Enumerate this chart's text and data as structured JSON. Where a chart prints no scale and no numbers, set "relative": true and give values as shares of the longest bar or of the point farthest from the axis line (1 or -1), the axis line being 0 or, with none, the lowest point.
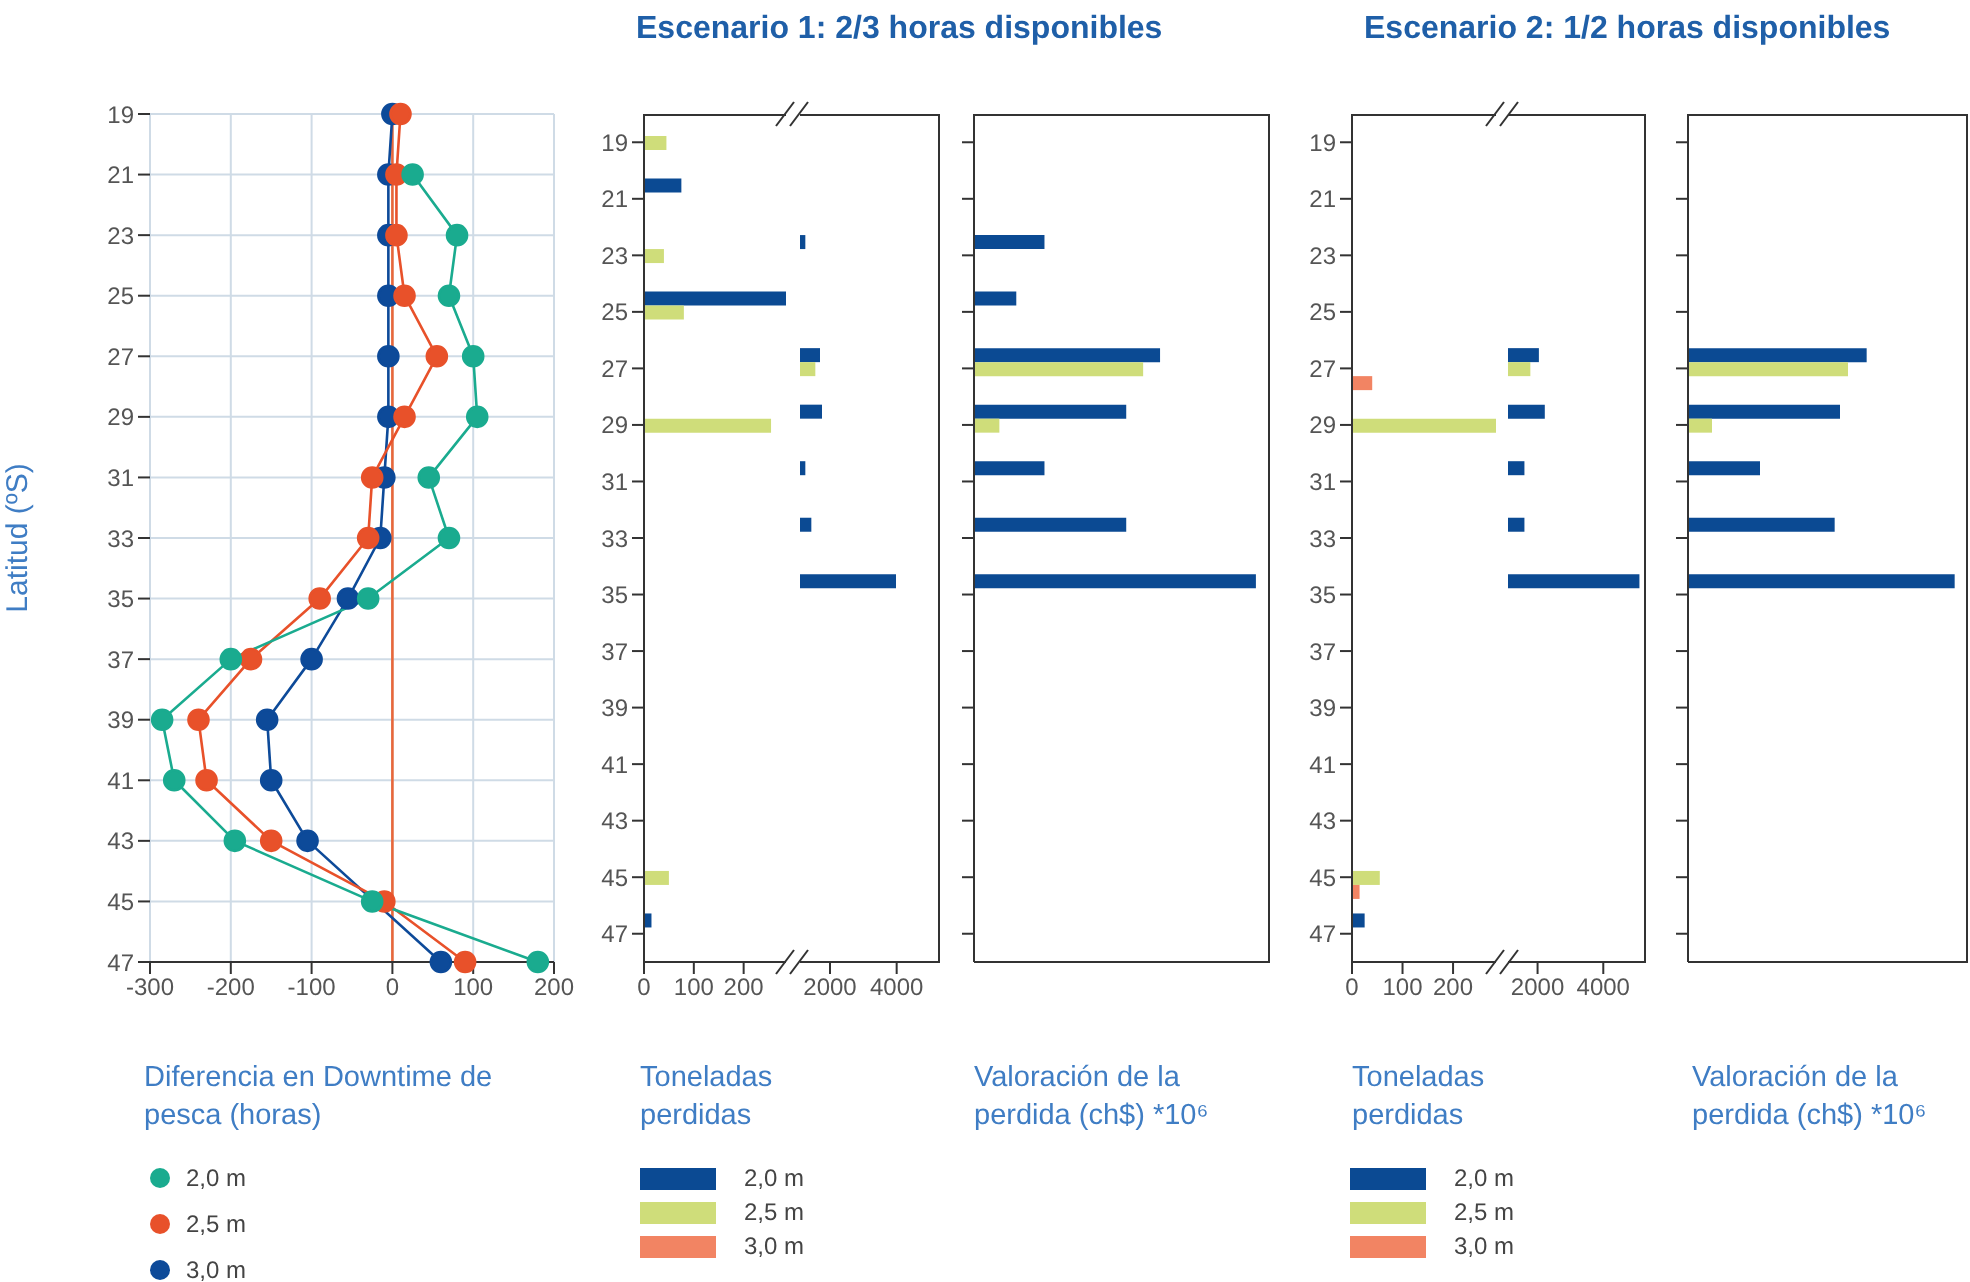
{
  "chart_data": [
    {
      "type": "line",
      "orientation": "horizontal",
      "xlabel": "Diferencia en Downtime de pesca (horas)",
      "ylabel": "Latitud (ºS)",
      "categories": [
        "19",
        "21",
        "23",
        "25",
        "27",
        "29",
        "31",
        "33",
        "35",
        "37",
        "39",
        "41",
        "43",
        "45",
        "47"
      ],
      "xlim": [
        -300,
        200
      ],
      "xticks": [
        -300,
        -200,
        -100,
        0,
        100,
        200
      ],
      "grid": true,
      "legend": "bottom",
      "marker": "circle",
      "ref_lines": [
        {
          "axis": "x",
          "value": 0,
          "color": "#e8673a"
        }
      ],
      "series": [
        {
          "name": "2,0 m",
          "color": "#1aab8f",
          "values": [
            null,
            25,
            80,
            70,
            100,
            105,
            45,
            70,
            -30,
            -200,
            -285,
            -270,
            -195,
            -25,
            180
          ]
        },
        {
          "name": "2,5 m",
          "color": "#e8512a",
          "values": [
            10,
            5,
            5,
            15,
            55,
            15,
            -25,
            -30,
            -90,
            -175,
            -240,
            -230,
            -150,
            -10,
            90
          ]
        },
        {
          "name": "3,0 m",
          "color": "#0d4a99",
          "values": [
            0,
            -5,
            -5,
            -5,
            -5,
            -5,
            -10,
            -15,
            -55,
            -100,
            -155,
            -150,
            -105,
            null,
            60
          ]
        }
      ]
    },
    {
      "type": "bar",
      "orientation": "horizontal",
      "title": "Escenario 1: 2/3 horas disponibles",
      "xlabel": "Toneladas perdidas",
      "categories": [
        "19",
        "21",
        "23",
        "25",
        "27",
        "29",
        "31",
        "33",
        "35",
        "37",
        "39",
        "41",
        "43",
        "45",
        "47"
      ],
      "xlim": [
        0,
        285
      ],
      "xticks": [
        0,
        100,
        200
      ],
      "legend": "bottom",
      "series": [
        {
          "name": "2,0 m",
          "color": "#0b4a93",
          "values": [
            null,
            75,
            null,
            285,
            null,
            null,
            null,
            null,
            null,
            null,
            null,
            null,
            null,
            null,
            15
          ]
        },
        {
          "name": "2,5 m",
          "color": "#cfdd7a",
          "values": [
            45,
            null,
            40,
            80,
            null,
            255,
            null,
            null,
            null,
            null,
            null,
            null,
            null,
            50,
            null
          ]
        },
        {
          "name": "3,0 m",
          "color": "#f28463",
          "values": [
            null,
            null,
            null,
            null,
            null,
            null,
            null,
            null,
            null,
            null,
            null,
            null,
            null,
            null,
            null
          ]
        }
      ]
    },
    {
      "type": "bar",
      "orientation": "horizontal",
      "tick_labels": "x",
      "categories": [
        "19",
        "21",
        "23",
        "25",
        "27",
        "29",
        "31",
        "33",
        "35",
        "37",
        "39",
        "41",
        "43",
        "45",
        "47"
      ],
      "xlim": [
        1100,
        5300
      ],
      "xticks": [
        2000,
        4000
      ],
      "series": [
        {
          "color": "#0b4a93",
          "values": [
            null,
            null,
            1260,
            null,
            1700,
            1760,
            1260,
            1440,
            3980,
            null,
            null,
            null,
            null,
            null,
            null
          ]
        },
        {
          "color": "#cfdd7a",
          "values": [
            null,
            null,
            null,
            null,
            1560,
            null,
            null,
            null,
            null,
            null,
            null,
            null,
            null,
            null,
            null
          ]
        },
        {
          "color": "#f28463",
          "values": [
            null,
            null,
            null,
            null,
            null,
            null,
            null,
            null,
            null,
            null,
            null,
            null,
            null,
            null,
            null
          ]
        }
      ]
    },
    {
      "type": "bar",
      "orientation": "horizontal",
      "relative": true,
      "tick_labels": false,
      "xlabel": "Valoración de la perdida (ch$) *10⁶",
      "categories": [
        "19",
        "21",
        "23",
        "25",
        "27",
        "29",
        "31",
        "33",
        "35",
        "37",
        "39",
        "41",
        "43",
        "45",
        "47"
      ],
      "series": [
        {
          "color": "#0b4a93",
          "values": [
            null,
            null,
            0.25,
            0.15,
            0.66,
            0.54,
            0.25,
            0.54,
            1,
            null,
            null,
            null,
            null,
            null,
            null
          ]
        },
        {
          "color": "#cfdd7a",
          "values": [
            null,
            null,
            null,
            null,
            0.6,
            0.09,
            null,
            null,
            null,
            null,
            null,
            null,
            null,
            null,
            null
          ]
        },
        {
          "color": "#f28463",
          "values": [
            null,
            null,
            null,
            null,
            null,
            null,
            null,
            null,
            null,
            null,
            null,
            null,
            null,
            null,
            null
          ]
        }
      ]
    },
    {
      "type": "bar",
      "orientation": "horizontal",
      "title": "Escenario 2: 1/2 horas disponibles",
      "xlabel": "Toneladas perdidas",
      "categories": [
        "19",
        "21",
        "23",
        "25",
        "27",
        "29",
        "31",
        "33",
        "35",
        "37",
        "39",
        "41",
        "43",
        "45",
        "47"
      ],
      "xlim": [
        0,
        285
      ],
      "xticks": [
        0,
        100,
        200
      ],
      "legend": "bottom",
      "series": [
        {
          "name": "2,0 m",
          "color": "#0b4a93",
          "values": [
            null,
            null,
            null,
            null,
            null,
            null,
            null,
            null,
            null,
            null,
            null,
            null,
            null,
            null,
            25
          ]
        },
        {
          "name": "2,5 m",
          "color": "#cfdd7a",
          "values": [
            null,
            null,
            null,
            null,
            null,
            285,
            null,
            null,
            null,
            null,
            null,
            null,
            null,
            55,
            null
          ]
        },
        {
          "name": "3,0 m",
          "color": "#f28463",
          "values": [
            null,
            null,
            null,
            null,
            40,
            null,
            null,
            null,
            null,
            null,
            null,
            null,
            null,
            15,
            null
          ]
        }
      ]
    },
    {
      "type": "bar",
      "orientation": "horizontal",
      "tick_labels": "x",
      "categories": [
        "19",
        "21",
        "23",
        "25",
        "27",
        "29",
        "31",
        "33",
        "35",
        "37",
        "39",
        "41",
        "43",
        "45",
        "47"
      ],
      "xlim": [
        1100,
        5300
      ],
      "xticks": [
        2000,
        4000
      ],
      "series": [
        {
          "color": "#0b4a93",
          "values": [
            null,
            null,
            null,
            null,
            2040,
            2220,
            1600,
            1600,
            5100,
            null,
            null,
            null,
            null,
            null,
            null
          ]
        },
        {
          "color": "#cfdd7a",
          "values": [
            null,
            null,
            null,
            null,
            1780,
            null,
            null,
            null,
            null,
            null,
            null,
            null,
            null,
            null,
            null
          ]
        },
        {
          "color": "#f28463",
          "values": [
            null,
            null,
            null,
            null,
            null,
            null,
            null,
            null,
            null,
            null,
            null,
            null,
            null,
            null,
            null
          ]
        }
      ]
    },
    {
      "type": "bar",
      "orientation": "horizontal",
      "relative": true,
      "tick_labels": false,
      "xlabel": "Valoración de la perdida (ch$) *10⁶",
      "categories": [
        "19",
        "21",
        "23",
        "25",
        "27",
        "29",
        "31",
        "33",
        "35",
        "37",
        "39",
        "41",
        "43",
        "45",
        "47"
      ],
      "series": [
        {
          "color": "#0b4a93",
          "values": [
            null,
            null,
            null,
            null,
            0.67,
            0.57,
            0.27,
            0.55,
            1,
            null,
            null,
            null,
            null,
            null,
            null
          ]
        },
        {
          "color": "#cfdd7a",
          "values": [
            null,
            null,
            null,
            null,
            0.6,
            0.09,
            null,
            null,
            null,
            null,
            null,
            null,
            null,
            null,
            null
          ]
        },
        {
          "color": "#f28463",
          "values": [
            null,
            null,
            null,
            null,
            null,
            null,
            null,
            null,
            null,
            null,
            null,
            null,
            null,
            null,
            null
          ]
        }
      ]
    }
  ]
}
